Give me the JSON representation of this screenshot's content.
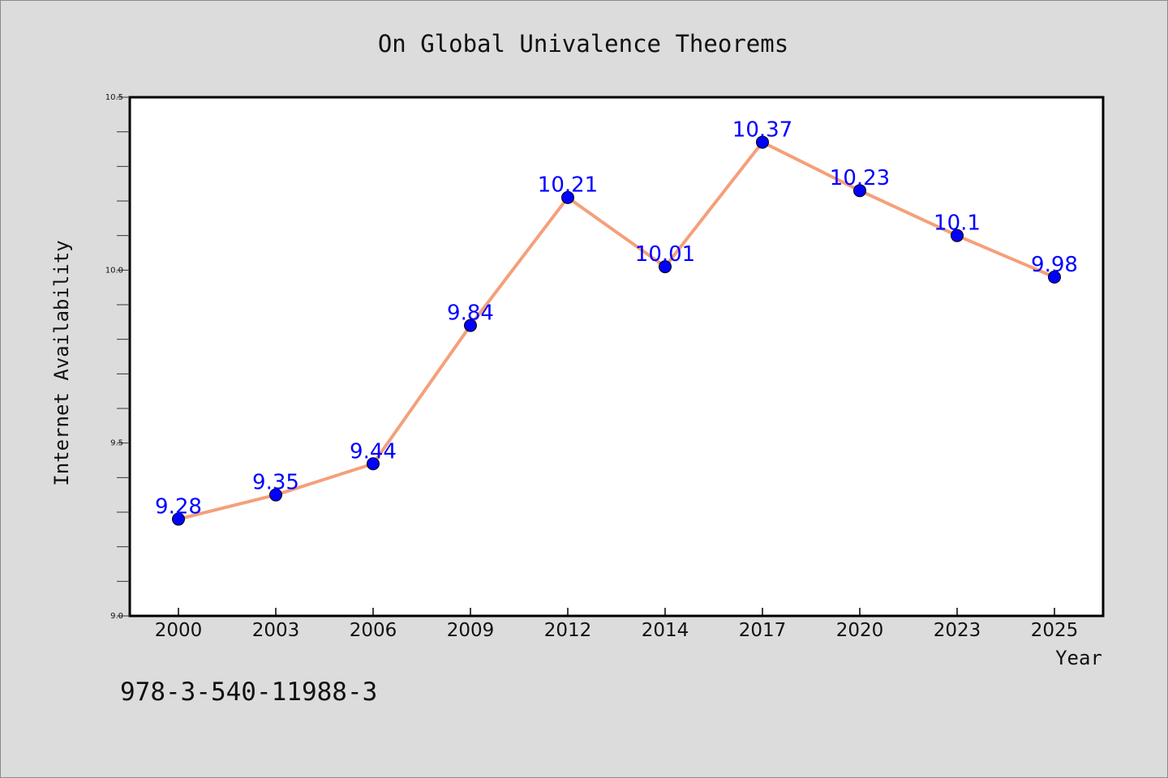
{
  "chart_data": {
    "type": "line",
    "title": "On Global Univalence Theorems",
    "xlabel": "Year",
    "ylabel": "Internet Availability",
    "categories": [
      "2000",
      "2003",
      "2006",
      "2009",
      "2012",
      "2014",
      "2017",
      "2020",
      "2023",
      "2025"
    ],
    "series": [
      {
        "values": [
          9.28,
          9.35,
          9.44,
          9.84,
          10.21,
          10.01,
          10.37,
          10.23,
          10.1,
          9.98
        ],
        "data_labels": [
          "9.28",
          "9.35",
          "9.44",
          "9.84",
          "10.21",
          "10.01",
          "10.37",
          "10.23",
          "10.1",
          "9.98"
        ],
        "line_color": "#f4a07a",
        "marker_color": "#0000ff",
        "label_color": "#0000ff"
      }
    ],
    "ylim": [
      9.0,
      10.5
    ],
    "yticks": [
      "9.0",
      "9.5",
      "10.0",
      "10.5"
    ],
    "grid": false,
    "legend": "none"
  },
  "footnote": "978-3-540-11988-3",
  "colors": {
    "background": "#dcdcdc",
    "plot_background": "#ffffff"
  }
}
